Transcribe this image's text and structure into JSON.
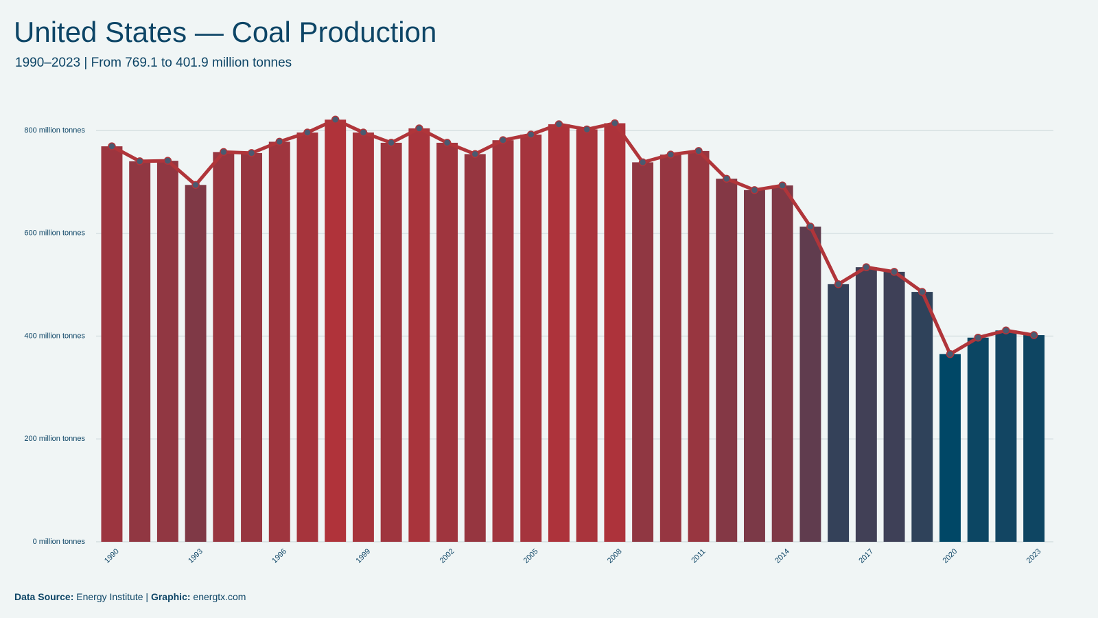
{
  "chart_data": {
    "type": "bar",
    "title": "United States — Coal Production",
    "subtitle": "1990–2023 | From 769.1 to 401.9 million tonnes",
    "footer": {
      "source_label": "Data Source:",
      "source": "Energy Institute |",
      "graphic_label": "Graphic:",
      "graphic": "energtx.com"
    },
    "categories": [
      1990,
      null,
      null,
      1993,
      null,
      null,
      1996,
      null,
      null,
      1999,
      null,
      null,
      2002,
      null,
      null,
      2005,
      null,
      null,
      2008,
      null,
      null,
      2011,
      null,
      null,
      2014,
      null,
      null,
      2017,
      null,
      null,
      2020,
      null,
      null,
      2023
    ],
    "values": [
      769.1,
      740,
      741,
      694,
      758,
      756,
      778,
      796,
      821,
      796,
      776,
      804,
      776,
      754,
      781,
      792,
      812,
      802,
      814,
      738,
      753,
      760,
      706,
      684,
      693,
      613,
      501,
      534,
      525,
      486,
      365,
      397,
      411,
      401.9
    ],
    "color_scale": [
      "#004766",
      "#b0333a"
    ],
    "line_color": "#b0353a",
    "point_color": "#4a5a70",
    "ylim": [
      0,
      840
    ],
    "yticks": [
      {
        "value": 0,
        "label": "0 million tonnes"
      },
      {
        "value": 200,
        "label": "200 million tonnes"
      },
      {
        "value": 400,
        "label": "400 million tonnes"
      },
      {
        "value": 600,
        "label": "600 million tonnes"
      },
      {
        "value": 800,
        "label": "800 million tonnes"
      }
    ],
    "grid": true
  }
}
